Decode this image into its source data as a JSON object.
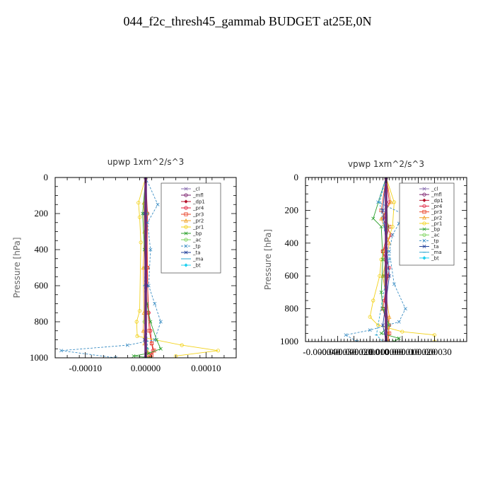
{
  "title": "044_f2c_thresh45_gammab  BUDGET at25E,0N",
  "chart_data": [
    {
      "type": "line",
      "title": "upwp   1xm^2/s^3",
      "ylabel": "Pressure [hPa]",
      "xlabel": "",
      "xlim": [
        -0.00015,
        0.00015
      ],
      "ylim": [
        1000,
        0
      ],
      "y_reversed": true,
      "xticks": [
        -0.0001,
        0.0,
        0.0001
      ],
      "xtick_labels": [
        "-0.00010",
        "0.00000",
        "0.00010"
      ],
      "yticks": [
        0,
        200,
        400,
        600,
        800,
        1000
      ],
      "ytick_labels": [
        "0",
        "200",
        "400",
        "600",
        "800",
        "1000"
      ],
      "legend_position": "upper-right",
      "series": [
        {
          "name": "_cl",
          "color": "#8a6fb0",
          "marker": "cross",
          "x": [
            0,
            0
          ],
          "y": [
            0,
            1000
          ]
        },
        {
          "name": "_mfl",
          "color": "#7a1e6c",
          "marker": "circle",
          "x": [
            0,
            0
          ],
          "y": [
            0,
            1000
          ]
        },
        {
          "name": "_dp1",
          "color": "#b5122c",
          "marker": "diamond",
          "x": [
            0,
            0,
            0,
            0,
            0
          ],
          "y": [
            0,
            300,
            600,
            900,
            1000
          ]
        },
        {
          "name": "_pr4",
          "color": "#e01f3d",
          "marker": "circle",
          "x": [
            0,
            3e-06,
            2e-06,
            5e-06,
            8e-06,
            1e-05,
            1.2e-05,
            8e-06,
            4e-06
          ],
          "y": [
            0,
            200,
            500,
            750,
            850,
            920,
            960,
            985,
            1000
          ]
        },
        {
          "name": "_pr3",
          "color": "#e8432a",
          "marker": "square",
          "x": [
            0,
            2e-06,
            3e-06,
            4e-06,
            6e-06,
            1e-05,
            1.4e-05,
            1e-05,
            6e-06
          ],
          "y": [
            0,
            200,
            500,
            750,
            850,
            920,
            960,
            985,
            1000
          ]
        },
        {
          "name": "_pr2",
          "color": "#f0a020",
          "marker": "triangle",
          "x": [
            0,
            -3e-06,
            -2e-06,
            -4e-06,
            -3e-06,
            -4e-06,
            -2e-06,
            4e-06,
            3e-06
          ],
          "y": [
            0,
            140,
            300,
            500,
            750,
            850,
            920,
            970,
            1000
          ]
        },
        {
          "name": "_pr1",
          "color": "#f2d21a",
          "marker": "circle",
          "x": [
            0,
            -1.2e-05,
            -1e-05,
            -8e-06,
            -1e-05,
            -1.5e-05,
            -1.4e-05,
            6e-05,
            0.00012,
            5e-05
          ],
          "y": [
            0,
            140,
            220,
            360,
            740,
            800,
            880,
            930,
            960,
            990
          ]
        },
        {
          "name": "_bp",
          "color": "#2ca02c",
          "marker": "cross",
          "x": [
            0,
            -5e-06,
            -2e-06,
            2e-06,
            8e-06,
            1.8e-05,
            2.5e-05,
            5e-06,
            -2e-05,
            8e-06
          ],
          "y": [
            0,
            200,
            400,
            700,
            800,
            900,
            950,
            975,
            990,
            1000
          ]
        },
        {
          "name": "_ac",
          "color": "#7ad35a",
          "marker": "circle",
          "x": [
            0,
            2e-06,
            0,
            -2e-06,
            2e-06,
            0
          ],
          "y": [
            0,
            200,
            500,
            800,
            950,
            1000
          ]
        },
        {
          "name": "_tp",
          "color": "#3c8ec4",
          "marker": "cross",
          "x": [
            0,
            2e-05,
            3e-06,
            8e-06,
            5e-06,
            1.5e-05,
            2.5e-05,
            1.5e-05,
            -3e-05,
            -0.00014,
            -5e-05
          ],
          "y": [
            0,
            150,
            250,
            400,
            600,
            700,
            800,
            900,
            930,
            960,
            1000
          ]
        },
        {
          "name": "_ta",
          "color": "#1f3f9a",
          "marker": "cross",
          "x": [
            0,
            -2e-06,
            2e-06,
            -2e-06,
            0
          ],
          "y": [
            0,
            200,
            600,
            900,
            1000
          ]
        },
        {
          "name": "_ma",
          "color": "#2aa5d0",
          "marker": "dash",
          "x": [
            0,
            2e-06,
            -2e-06,
            3e-06,
            0
          ],
          "y": [
            0,
            200,
            600,
            950,
            1000
          ]
        },
        {
          "name": "_bt",
          "color": "#1fd0f0",
          "marker": "diamond",
          "x": [
            0,
            0
          ],
          "y": [
            0,
            1000
          ]
        }
      ]
    },
    {
      "type": "line",
      "title": "vpwp   1xm^2/s^3",
      "ylabel": "Pressure [hPa]",
      "xlabel": "",
      "xlim": [
        -5e-05,
        5e-05
      ],
      "ylim": [
        1000,
        0
      ],
      "y_reversed": true,
      "xticks": [
        -4e-05,
        -3e-05,
        -2e-05,
        -1e-05,
        0.0,
        1e-05,
        2e-05,
        3e-05
      ],
      "xtick_labels": [
        "-0.000040",
        "-0.000030",
        "-0.000020",
        "-0.000010",
        "0.000000",
        "0.000010",
        "0.000020",
        "0.000030"
      ],
      "yticks": [
        0,
        200,
        400,
        600,
        800,
        1000
      ],
      "ytick_labels": [
        "0",
        "200",
        "400",
        "600",
        "800",
        "1000"
      ],
      "legend_position": "upper-right",
      "series": [
        {
          "name": "_cl",
          "color": "#8a6fb0",
          "marker": "cross",
          "x": [
            0,
            0
          ],
          "y": [
            0,
            1000
          ]
        },
        {
          "name": "_mfl",
          "color": "#7a1e6c",
          "marker": "circle",
          "x": [
            0,
            0
          ],
          "y": [
            0,
            1000
          ]
        },
        {
          "name": "_dp1",
          "color": "#b5122c",
          "marker": "diamond",
          "x": [
            0,
            1e-06,
            -1e-06,
            1e-06,
            0
          ],
          "y": [
            0,
            300,
            600,
            900,
            1000
          ]
        },
        {
          "name": "_pr4",
          "color": "#e01f3d",
          "marker": "circle",
          "x": [
            0,
            2e-06,
            -2e-06,
            3e-06,
            -2e-06,
            2e-06,
            -1e-06,
            2e-06,
            1e-06
          ],
          "y": [
            0,
            150,
            250,
            350,
            450,
            550,
            750,
            900,
            1000
          ]
        },
        {
          "name": "_pr3",
          "color": "#e8432a",
          "marker": "square",
          "x": [
            0,
            -3e-06,
            2e-06,
            -2e-06,
            1e-06,
            -2e-06,
            2e-06,
            1e-06
          ],
          "y": [
            0,
            200,
            300,
            450,
            600,
            800,
            950,
            1000
          ]
        },
        {
          "name": "_pr2",
          "color": "#f0a020",
          "marker": "triangle",
          "x": [
            0,
            3e-06,
            -3e-06,
            2e-06,
            -2e-06,
            2e-06,
            1e-06
          ],
          "y": [
            0,
            150,
            250,
            400,
            600,
            850,
            1000
          ]
        },
        {
          "name": "_pr1",
          "color": "#f2d21a",
          "marker": "circle",
          "x": [
            0,
            5e-06,
            4e-06,
            -3e-06,
            -4e-06,
            -8e-06,
            -1e-05,
            -5e-06,
            1e-05,
            3e-05,
            3e-05
          ],
          "y": [
            0,
            150,
            300,
            500,
            600,
            750,
            850,
            900,
            940,
            960,
            1000
          ]
        },
        {
          "name": "_bp",
          "color": "#2ca02c",
          "marker": "cross",
          "x": [
            0,
            -8e-06,
            -3e-06,
            -2e-06,
            -3e-06,
            -2e-06,
            2e-06,
            -3e-06,
            8e-06,
            5e-06
          ],
          "y": [
            0,
            250,
            300,
            500,
            700,
            800,
            900,
            950,
            980,
            1000
          ]
        },
        {
          "name": "_ac",
          "color": "#7ad35a",
          "marker": "circle",
          "x": [
            0,
            1e-06,
            -1e-06,
            1e-06,
            0
          ],
          "y": [
            0,
            300,
            600,
            900,
            1000
          ]
        },
        {
          "name": "_tp",
          "color": "#3c8ec4",
          "marker": "cross",
          "x": [
            0,
            -5e-06,
            1e-05,
            8e-06,
            4e-06,
            2e-06,
            5e-06,
            1.2e-05,
            8e-06,
            -1e-05,
            -2.5e-05,
            -1.8e-05
          ],
          "y": [
            0,
            150,
            220,
            280,
            350,
            450,
            650,
            800,
            880,
            930,
            960,
            1000
          ]
        },
        {
          "name": "_ta",
          "color": "#1f3f9a",
          "marker": "cross",
          "x": [
            0,
            -2e-06,
            2e-06,
            -2e-06,
            0
          ],
          "y": [
            0,
            200,
            600,
            900,
            1000
          ]
        },
        {
          "name": "_ma",
          "color": "#2aa5d0",
          "marker": "dash",
          "x": [
            0,
            -4e-06,
            2e-06,
            -6e-06,
            -2e-06
          ],
          "y": [
            0,
            150,
            500,
            960,
            1000
          ]
        },
        {
          "name": "_bt",
          "color": "#1fd0f0",
          "marker": "diamond",
          "x": [
            0,
            0
          ],
          "y": [
            0,
            1000
          ]
        }
      ]
    }
  ]
}
